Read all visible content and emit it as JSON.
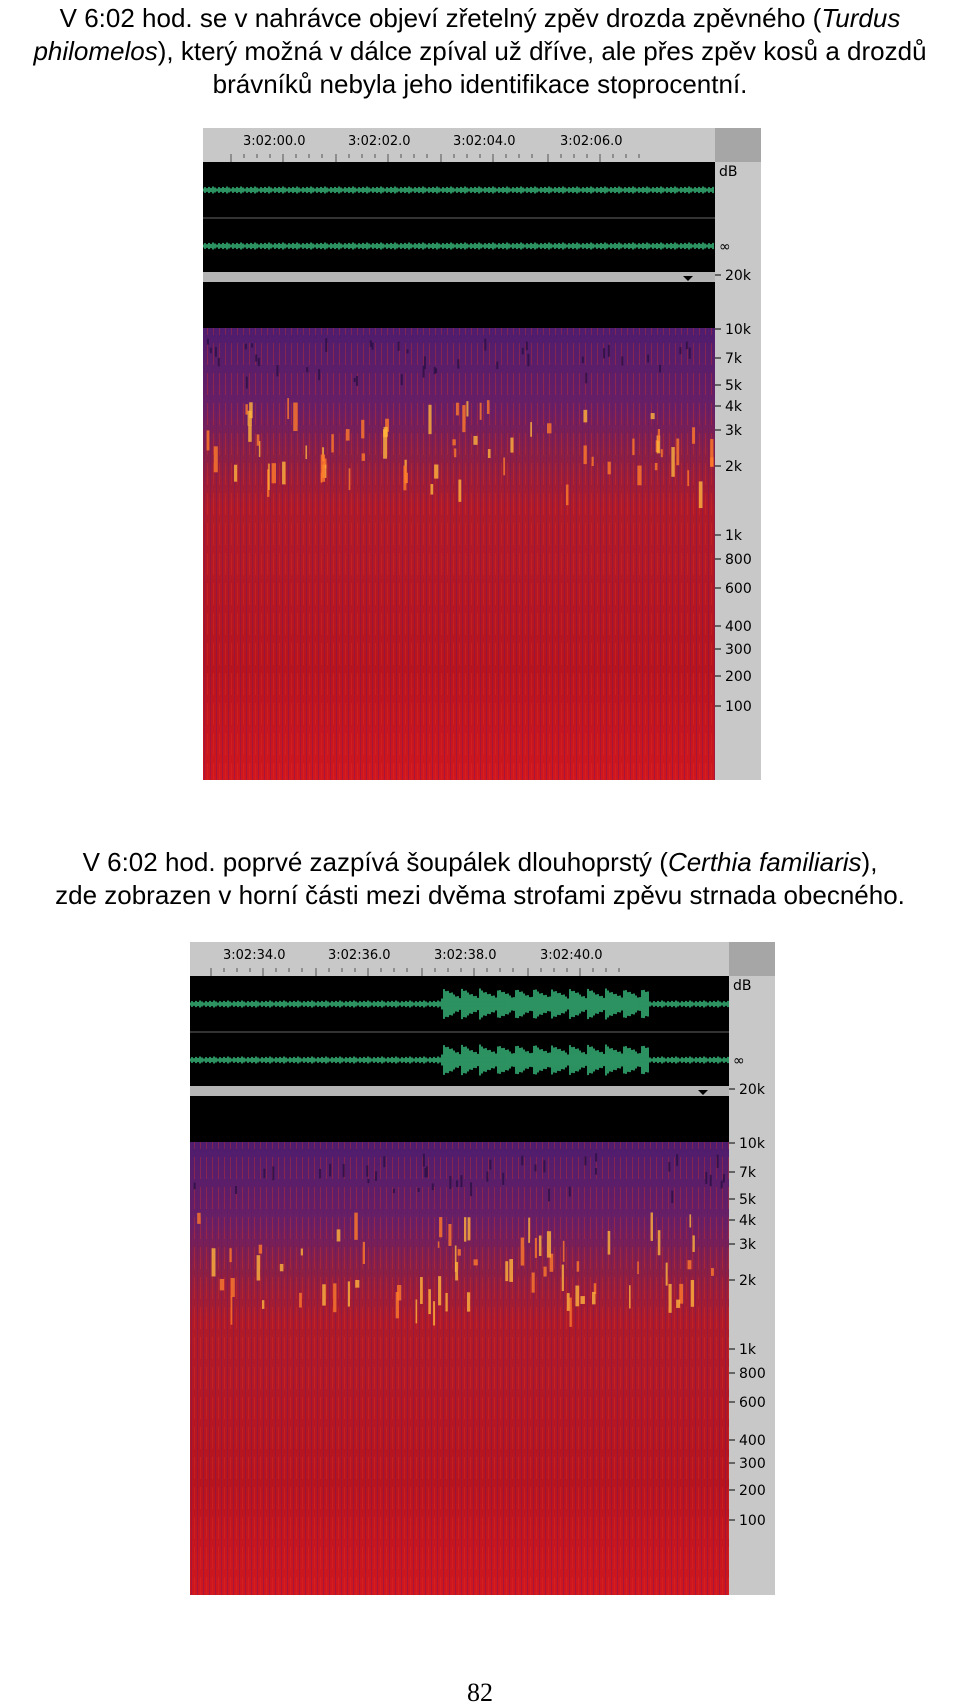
{
  "captions": {
    "first": {
      "line1_pre": "V 6:02 hod. se v nahrávce objeví zřetelný zpěv drozda zpěvného (",
      "line1_italic": "Turdus",
      "line2_italic": "philomelos",
      "line2_post": "), který možná v dálce zpíval už dříve, ale přes zpěv kosů a drozdů",
      "line3": "brávníků nebyla jeho identifikace stoprocentní."
    },
    "second": {
      "line1_pre": "V 6:02 hod. poprvé zazpívá šoupálek dlouhoprstý (",
      "line1_italic": "Certhia familiaris",
      "line1_post": "),",
      "line2": "zde zobrazen v horní části mezi dvěma strofami zpěvu strnada obecného."
    }
  },
  "spectrogram_1": {
    "time_ticks": [
      "3:02:00.0",
      "3:02:02.0",
      "3:02:04.0",
      "3:02:06.0"
    ],
    "db_label": "dB",
    "inf_label": "∞",
    "freq_ticks": [
      "20k",
      "10k",
      "7k",
      "5k",
      "4k",
      "3k",
      "2k",
      "1k",
      "800",
      "600",
      "400",
      "300",
      "200",
      "100"
    ]
  },
  "spectrogram_2": {
    "time_ticks": [
      "3:02:34.0",
      "3:02:36.0",
      "3:02:38.0",
      "3:02:40.0"
    ],
    "db_label": "dB",
    "inf_label": "∞",
    "freq_ticks": [
      "20k",
      "10k",
      "7k",
      "5k",
      "4k",
      "3k",
      "2k",
      "1k",
      "800",
      "600",
      "400",
      "300",
      "200",
      "100"
    ]
  },
  "page_number": "82",
  "colors": {
    "waveform": "#3fd08a",
    "spectrogram_background": "#b0141e",
    "spectrogram_noise": "#4a1f6e",
    "ruler": "#c8c8c8"
  }
}
